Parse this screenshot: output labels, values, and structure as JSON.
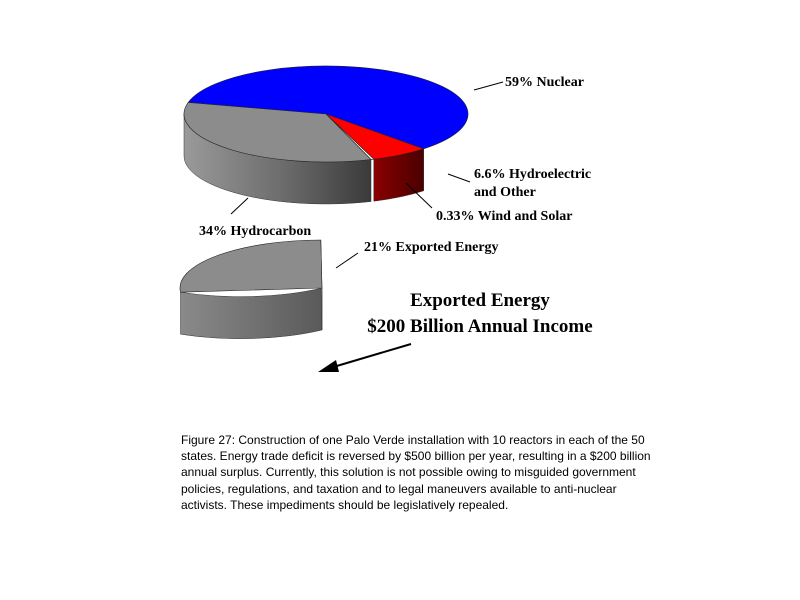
{
  "chart_data": {
    "type": "pie",
    "slices": [
      {
        "label": "59% Nuclear",
        "value": 59,
        "color": "#0000ff",
        "side": "#1a1a5a"
      },
      {
        "label": "6.6% Hydroelectric",
        "label2": "and Other",
        "value": 6.6,
        "color": "#ff0000",
        "side": "#6e0000"
      },
      {
        "label": "0.33% Wind and Solar",
        "value": 0.33,
        "color": "#ffffff",
        "side": "#d8d8d8"
      },
      {
        "label": "34% Hydrocarbon",
        "value": 34,
        "color": "#8c8c8c",
        "side": "#5a5a5a"
      }
    ],
    "exploded": {
      "label": "21% Exported Energy",
      "value": 21,
      "color": "#8c8c8c",
      "side": "#5a5a5a"
    },
    "annotation": {
      "line1": "Exported Energy",
      "line2": "$200 Billion Annual Income"
    }
  },
  "caption": "Figure 27: Construction of one Palo Verde installation with 10 reactors in each of the 50 states. Energy trade deficit is reversed by $500 billion per year, resulting in a $200 billion annual surplus. Currently, this solution is not  possible owing to misguided government policies, regulations, and taxation and to legal maneuvers available to anti-nuclear activists. These impediments should be legislatively repealed."
}
